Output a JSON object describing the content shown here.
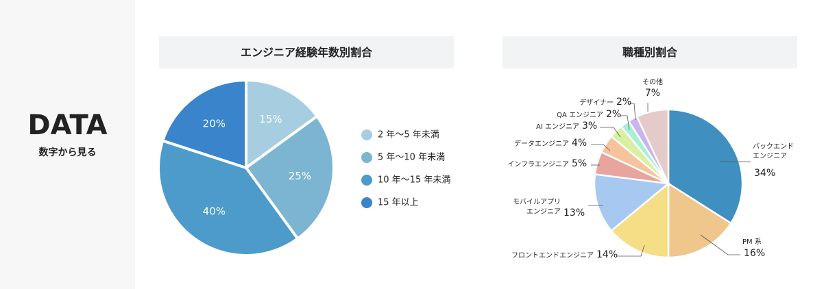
{
  "section": {
    "title": "DATA",
    "subtitle": "数字から見る"
  },
  "chart_data": [
    {
      "type": "pie",
      "title": "エンジニア経験年数別割合",
      "categories": [
        "2 年〜5 年未満",
        "5 年〜10 年未満",
        "10 年〜15 年未満",
        "15 年以上"
      ],
      "values": [
        15,
        25,
        40,
        20
      ],
      "value_labels": [
        "15%",
        "25%",
        "40%",
        "20%"
      ],
      "colors": [
        "#a7cde1",
        "#7bb5d1",
        "#4c9bcb",
        "#3a84cc"
      ],
      "legend": "right"
    },
    {
      "type": "pie",
      "title": "職種別割合",
      "categories": [
        "バックエンド\nエンジニア",
        "PM 系",
        "フロントエンドエンジニア",
        "モバイルアプリ\nエンジニア",
        "インフラエンジニア",
        "データエンジニア",
        "AI エンジニア",
        "QA エンジニア",
        "デザイナー",
        "その他"
      ],
      "values": [
        34,
        16,
        14,
        13,
        5,
        4,
        3,
        2,
        2,
        7
      ],
      "value_labels": [
        "34%",
        "16%",
        "14%",
        "13%",
        "5%",
        "4%",
        "3%",
        "2%",
        "2%",
        "7%"
      ],
      "colors": [
        "#3f8fc0",
        "#efc68c",
        "#f5de86",
        "#a7c8f0",
        "#e8a59d",
        "#f5c39c",
        "#d9f0a3",
        "#a6f0d3",
        "#cab4f0",
        "#e4cbca"
      ]
    }
  ]
}
